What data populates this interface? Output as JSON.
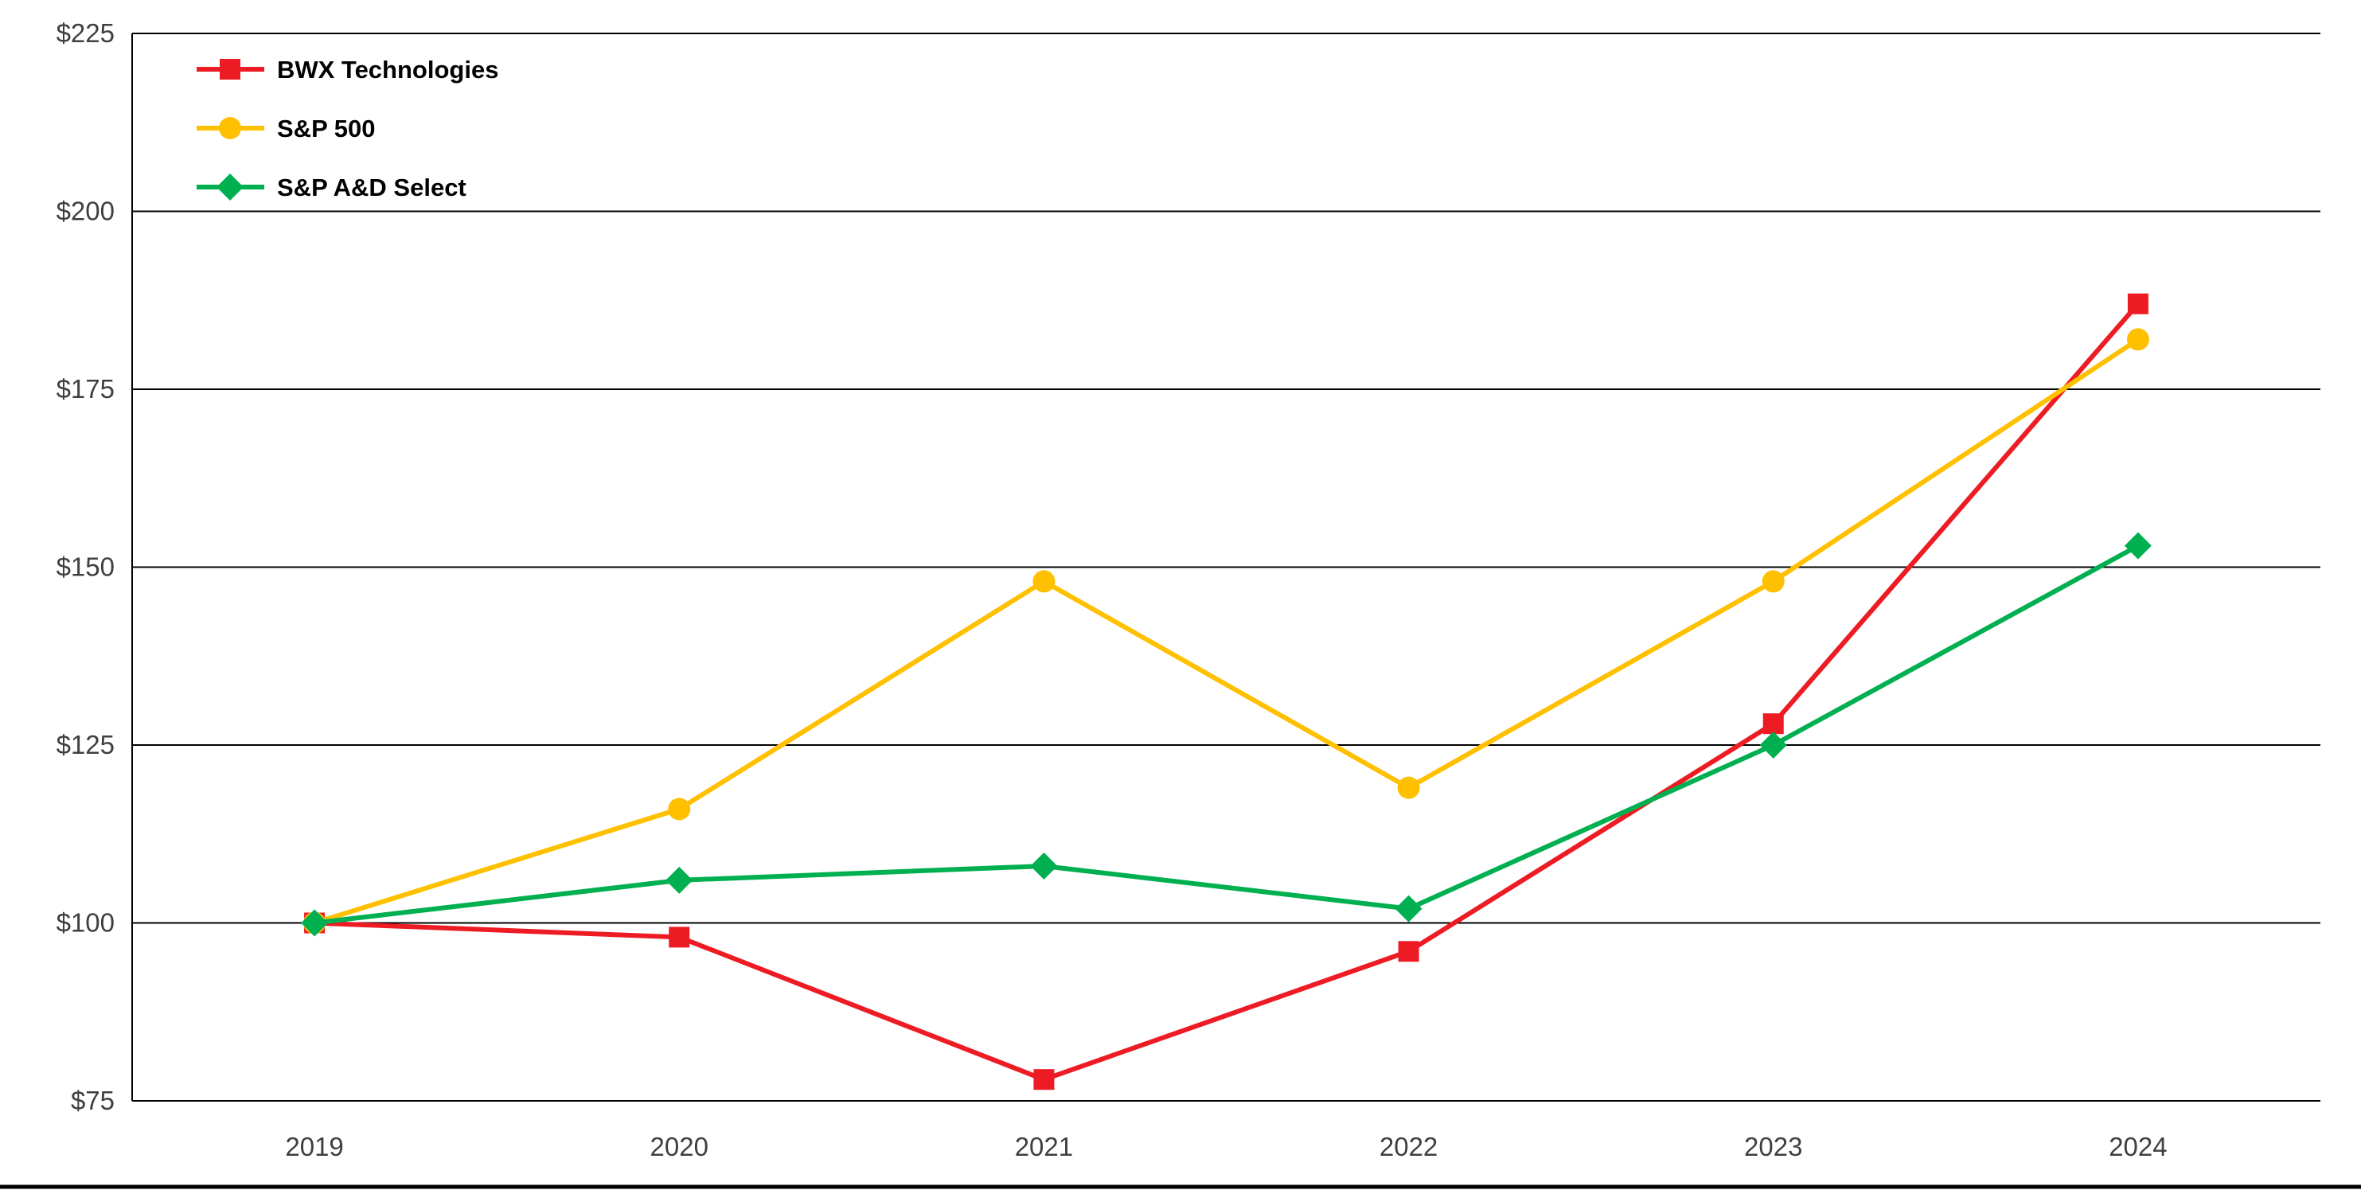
{
  "chart_data": {
    "type": "line",
    "title": "",
    "xlabel": "",
    "ylabel": "",
    "categories": [
      "2019",
      "2020",
      "2021",
      "2022",
      "2023",
      "2024"
    ],
    "series": [
      {
        "name": "BWX Technologies",
        "marker": "square",
        "color": "#ed1c24",
        "values": [
          100,
          98,
          78,
          96,
          128,
          187
        ]
      },
      {
        "name": "S&P 500",
        "marker": "circle",
        "color": "#ffc000",
        "values": [
          100,
          116,
          148,
          119,
          148,
          182
        ]
      },
      {
        "name": "S&P A&D Select",
        "marker": "diamond",
        "color": "#00b050",
        "values": [
          100,
          106,
          108,
          102,
          125,
          153
        ]
      }
    ],
    "y_ticks": [
      "$225",
      "$200",
      "$175",
      "$150",
      "$125",
      "$100",
      "$75"
    ],
    "y_tick_values": [
      225,
      200,
      175,
      150,
      125,
      100,
      75
    ],
    "ylim": [
      75,
      225
    ],
    "grid": "horizontal-black",
    "legend_position": "top-left-inside"
  },
  "colors": {
    "background": "#ffffff",
    "gridline": "#000000",
    "axis_line": "#000000",
    "tick_label": "#3f3f3f",
    "legend_text": "#000000",
    "bottom_border": "#000000"
  }
}
